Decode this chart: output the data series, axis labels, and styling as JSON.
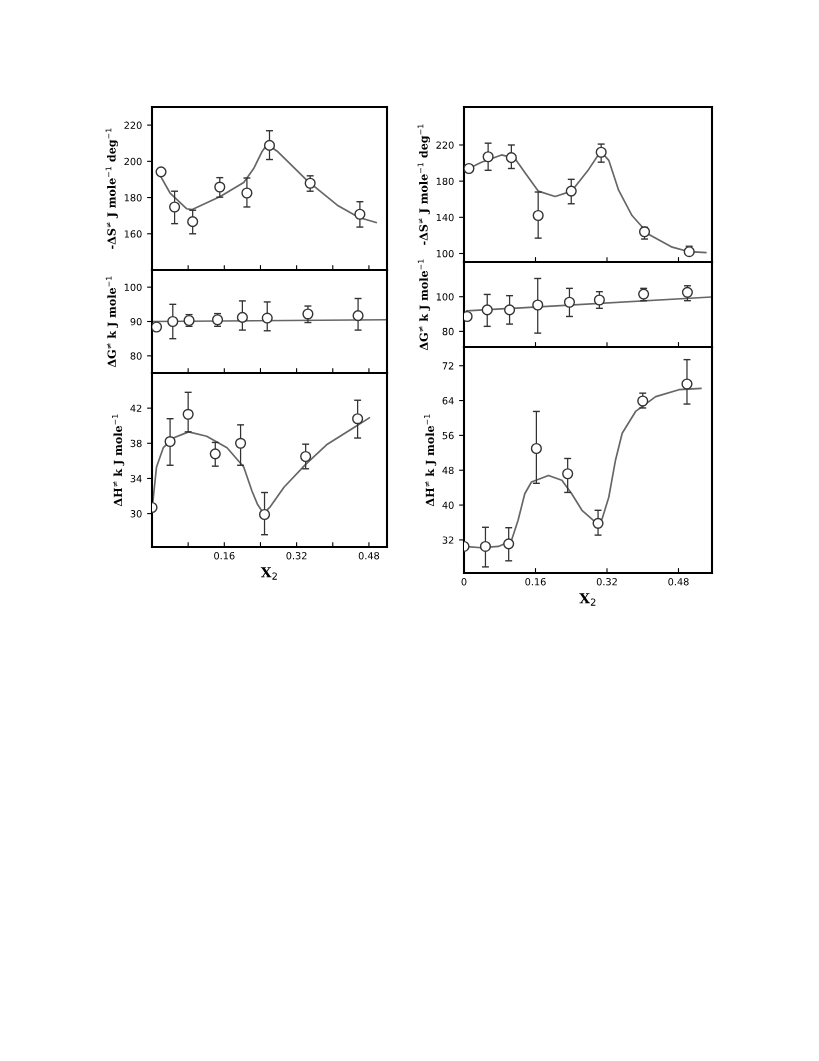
{
  "chart_data": [
    {
      "type": "scatter",
      "ylabel": "-ΔS$^{≠}$ J mole$^{−1}$ deg$^{−1}$",
      "xlim": [
        0,
        0.52
      ],
      "ylim": [
        140,
        230
      ],
      "xticks": [
        {
          "value": 0.08,
          "label": null
        },
        {
          "value": 0.16,
          "label": null
        },
        {
          "value": 0.24,
          "label": null
        },
        {
          "value": 0.32,
          "label": null
        },
        {
          "value": 0.4,
          "label": null
        },
        {
          "value": 0.48,
          "label": null
        }
      ],
      "yticks": [
        160,
        180,
        200,
        220
      ],
      "tick_labels": "y",
      "series": [
        {
          "color": "#333333",
          "marker": "circle",
          "x": [
            0.02,
            0.05,
            0.09,
            0.15,
            0.21,
            0.26,
            0.35,
            0.46
          ],
          "values": [
            194.2,
            174.8,
            166.7,
            185.8,
            182.5,
            208.8,
            187.9,
            170.8
          ],
          "errors": [
            null,
            [
              165.6,
              183.5
            ],
            [
              160,
              173
            ],
            [
              180.2,
              191
            ],
            [
              174.8,
              190.8
            ],
            [
              201,
              216.9
            ],
            [
              183.5,
              192
            ],
            [
              163.7,
              177.7
            ]
          ]
        },
        {
          "type": "line",
          "color": "#666666",
          "marker": "none",
          "line_style": "solid",
          "x": [
            0.016,
            0.04,
            0.077,
            0.088,
            0.151,
            0.203,
            0.225,
            0.244,
            0.255,
            0.277,
            0.344,
            0.41,
            0.458,
            0.496
          ],
          "values": [
            193.1,
            182.5,
            173.8,
            173.3,
            180.6,
            188.3,
            196,
            205.6,
            209.4,
            205.6,
            189.2,
            175.8,
            169,
            166.2
          ]
        }
      ]
    },
    {
      "type": "scatter",
      "ylabel": "ΔG$^{≠}$ k J mole$^{−1}$",
      "xlim": [
        0,
        0.52
      ],
      "ylim": [
        75,
        105
      ],
      "xticks": [
        {
          "value": 0.08,
          "label": null
        },
        {
          "value": 0.16,
          "label": null
        },
        {
          "value": 0.24,
          "label": null
        },
        {
          "value": 0.32,
          "label": null
        },
        {
          "value": 0.4,
          "label": null
        },
        {
          "value": 0.48,
          "label": null
        }
      ],
      "yticks": [
        80,
        90,
        100
      ],
      "tick_labels": "y",
      "series": [
        {
          "color": "#333333",
          "marker": "circle",
          "x": [
            0.01,
            0.046,
            0.082,
            0.145,
            0.2,
            0.255,
            0.345,
            0.456
          ],
          "values": [
            88.4,
            90.0,
            90.3,
            90.5,
            91.2,
            91.0,
            92.2,
            91.7
          ],
          "errors": [
            null,
            [
              85,
              95
            ],
            [
              88.6,
              92
            ],
            [
              88.6,
              92.3
            ],
            [
              87.5,
              96
            ],
            [
              87.3,
              95.7
            ],
            [
              89.7,
              94.5
            ],
            [
              87.5,
              96.7
            ]
          ]
        },
        {
          "type": "line",
          "color": "#666666",
          "marker": "none",
          "line_style": "solid",
          "x": [
            0,
            0.52
          ],
          "values": [
            90.0,
            90.5
          ]
        }
      ]
    },
    {
      "type": "scatter",
      "ylabel": "ΔH$^{≠}$ k J mole$^{−1}$",
      "xlabel": "X$_{2}$",
      "xlim": [
        0,
        0.52
      ],
      "ylim": [
        26.2,
        46
      ],
      "xticks": [
        {
          "value": 0.08,
          "label": null
        },
        0.16,
        {
          "value": 0.24,
          "label": null
        },
        0.32,
        {
          "value": 0.4,
          "label": null
        },
        0.48
      ],
      "yticks": [
        30,
        34,
        38,
        42
      ],
      "series": [
        {
          "color": "#333333",
          "marker": "circle",
          "x": [
            0.0,
            0.04,
            0.08,
            0.14,
            0.196,
            0.249,
            0.34,
            0.455
          ],
          "values": [
            30.7,
            38.2,
            41.3,
            36.8,
            38.0,
            29.9,
            36.5,
            40.8
          ],
          "errors": [
            null,
            [
              35.5,
              40.8
            ],
            [
              39.3,
              43.8
            ],
            [
              35.4,
              38.1
            ],
            [
              35.5,
              40.1
            ],
            [
              27.6,
              32.4
            ],
            [
              35.1,
              37.9
            ],
            [
              38.6,
              42.9
            ]
          ]
        },
        {
          "type": "line",
          "color": "#666666",
          "marker": "none",
          "line_style": "solid",
          "x": [
            0.0,
            0.01,
            0.025,
            0.047,
            0.081,
            0.121,
            0.166,
            0.203,
            0.221,
            0.233,
            0.247,
            0.262,
            0.292,
            0.34,
            0.388,
            0.447,
            0.481
          ],
          "values": [
            30.4,
            35.3,
            37.5,
            38.6,
            39.3,
            38.8,
            37.5,
            35.3,
            32.6,
            31.1,
            30.0,
            30.8,
            33.0,
            35.6,
            37.9,
            39.8,
            40.9
          ]
        }
      ]
    },
    {
      "type": "scatter",
      "ylabel": "-ΔS$^{≠}$ J mole$^{−1}$ deg$^{−1}$",
      "xlim": [
        0,
        0.555
      ],
      "ylim": [
        90.6,
        262
      ],
      "xticks": [
        {
          "value": 0.16,
          "label": null
        },
        {
          "value": 0.32,
          "label": null
        },
        {
          "value": 0.48,
          "label": null
        }
      ],
      "yticks": [
        100,
        140,
        180,
        220
      ],
      "tick_labels": "y",
      "series": [
        {
          "color": "#333333",
          "marker": "circle",
          "x": [
            0.011,
            0.054,
            0.106,
            0.166,
            0.24,
            0.307,
            0.404,
            0.504
          ],
          "values": [
            194,
            207,
            206,
            142,
            169,
            212,
            124,
            102
          ],
          "errors": [
            null,
            [
              192,
              222
            ],
            [
              194,
              220
            ],
            [
              117,
              168
            ],
            [
              155,
              182
            ],
            [
              201,
              221
            ],
            [
              116,
              129
            ],
            [
              99,
              108
            ]
          ]
        },
        {
          "type": "line",
          "color": "#666666",
          "marker": "none",
          "line_style": "solid",
          "x": [
            0.011,
            0.039,
            0.084,
            0.114,
            0.137,
            0.166,
            0.204,
            0.241,
            0.279,
            0.306,
            0.324,
            0.346,
            0.376,
            0.414,
            0.466,
            0.504,
            0.541
          ],
          "values": [
            194,
            201,
            209,
            205,
            189,
            169,
            163,
            169,
            193,
            213,
            203,
            170,
            142,
            121,
            107,
            102,
            101
          ]
        }
      ]
    },
    {
      "type": "scatter",
      "ylabel": "ΔG$^{≠}$ k J mole$^{−1}$",
      "xlim": [
        0,
        0.555
      ],
      "ylim": [
        71,
        120
      ],
      "xticks": [
        {
          "value": 0.16,
          "label": null
        },
        {
          "value": 0.32,
          "label": null
        },
        {
          "value": 0.48,
          "label": null
        }
      ],
      "yticks": [
        80,
        100
      ],
      "tick_labels": "y",
      "series": [
        {
          "color": "#333333",
          "marker": "circle",
          "x": [
            0.007,
            0.052,
            0.102,
            0.165,
            0.236,
            0.303,
            0.402,
            0.5
          ],
          "values": [
            88.6,
            92.4,
            92.4,
            95.2,
            96.8,
            98.1,
            101.5,
            102.5
          ],
          "errors": [
            null,
            [
              82.9,
              101.3
            ],
            [
              84.2,
              100.6
            ],
            [
              79,
              110.5
            ],
            [
              88.6,
              104.8
            ],
            [
              93.3,
              102.9
            ],
            [
              97.7,
              104.8
            ],
            [
              97.7,
              106.3
            ]
          ]
        },
        {
          "type": "line",
          "color": "#666666",
          "marker": "none",
          "line_style": "solid",
          "x": [
            0.006,
            0.552
          ],
          "values": [
            91.8,
            99.8
          ]
        }
      ]
    },
    {
      "type": "scatter",
      "ylabel": "ΔH$^{≠}$ k J mole$^{−1}$",
      "xlabel": "X$_{2}$",
      "xlim": [
        0,
        0.555
      ],
      "ylim": [
        24.4,
        76.3
      ],
      "xticks": [
        0,
        0.16,
        0.32,
        0.48
      ],
      "yticks": [
        32,
        40,
        48,
        56,
        64,
        72
      ],
      "series": [
        {
          "color": "#333333",
          "marker": "circle",
          "x": [
            0.0,
            0.048,
            0.1,
            0.162,
            0.232,
            0.3,
            0.4,
            0.499
          ],
          "values": [
            30.5,
            30.5,
            31.1,
            53.0,
            47.2,
            35.8,
            63.9,
            67.8
          ],
          "errors": [
            null,
            [
              25.8,
              34.9
            ],
            [
              27.2,
              34.8
            ],
            [
              45,
              61.5
            ],
            [
              42.9,
              50.7
            ],
            [
              33.1,
              38.8
            ],
            [
              62.3,
              65.7
            ],
            [
              63.2,
              73.4
            ]
          ]
        },
        {
          "type": "line",
          "color": "#666666",
          "marker": "none",
          "line_style": "solid",
          "x": [
            0.0,
            0.039,
            0.077,
            0.106,
            0.121,
            0.136,
            0.151,
            0.189,
            0.219,
            0.241,
            0.264,
            0.294,
            0.309,
            0.324,
            0.339,
            0.354,
            0.384,
            0.429,
            0.481,
            0.53
          ],
          "values": [
            30.5,
            30.2,
            30.5,
            31.8,
            36.5,
            42.6,
            45.3,
            46.8,
            45.7,
            42.6,
            38.8,
            36.1,
            36.8,
            41.8,
            50.3,
            56.5,
            61.5,
            64.9,
            66.5,
            66.8
          ]
        }
      ]
    }
  ]
}
